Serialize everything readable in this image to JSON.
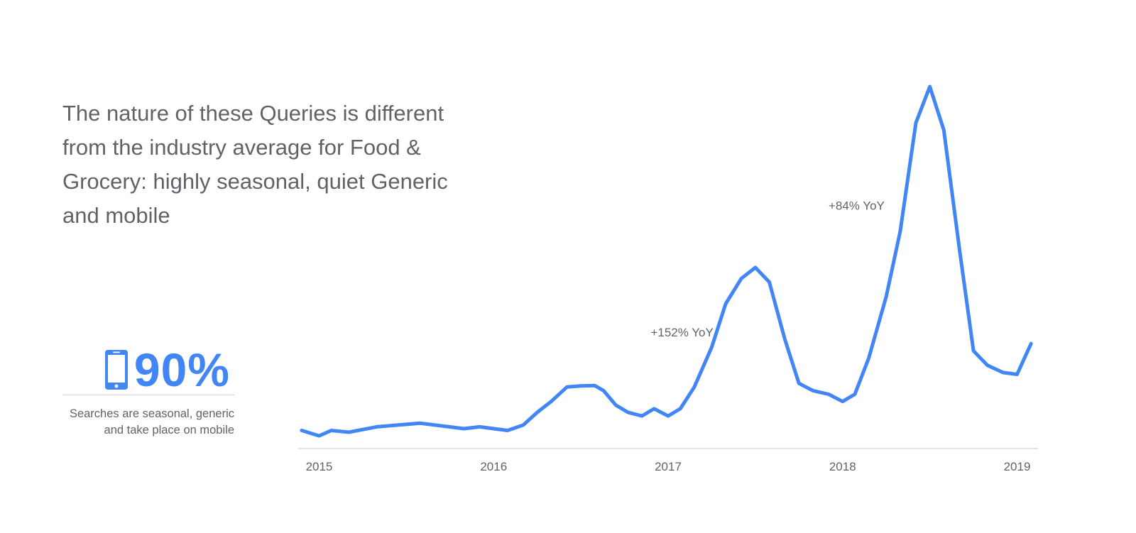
{
  "headline": "The nature of these Queries is different from the industry average for Food & Grocery: highly seasonal, quiet Generic and mobile",
  "stat": {
    "value": "90%",
    "icon": "phone-icon",
    "caption_line1": "Searches are seasonal, generic",
    "caption_line2": "and take place on mobile"
  },
  "colors": {
    "accent": "#4285f4",
    "text": "#5f6368",
    "axis": "#d7d9dc"
  },
  "chart_data": {
    "type": "line",
    "title": "",
    "xlabel": "",
    "ylabel": "",
    "xlim": [
      2014.88,
      2019.12
    ],
    "ylim": [
      0,
      100
    ],
    "grid": false,
    "x_ticks": [
      {
        "value": 2015.0,
        "label": "2015"
      },
      {
        "value": 2016.0,
        "label": "2016"
      },
      {
        "value": 2017.0,
        "label": "2017"
      },
      {
        "value": 2018.0,
        "label": "2018"
      },
      {
        "value": 2019.0,
        "label": "2019"
      }
    ],
    "series": [
      {
        "name": "",
        "x": [
          2014.9,
          2015.0,
          2015.07,
          2015.17,
          2015.33,
          2015.58,
          2015.83,
          2015.92,
          2016.0,
          2016.08,
          2016.17,
          2016.25,
          2016.33,
          2016.42,
          2016.5,
          2016.58,
          2016.63,
          2016.7,
          2016.77,
          2016.85,
          2016.92,
          2017.0,
          2017.07,
          2017.15,
          2017.25,
          2017.33,
          2017.42,
          2017.5,
          2017.58,
          2017.67,
          2017.75,
          2017.83,
          2017.92,
          2018.0,
          2018.07,
          2018.15,
          2018.25,
          2018.33,
          2018.42,
          2018.5,
          2018.58,
          2018.67,
          2018.75,
          2018.83,
          2018.92,
          2019.0,
          2019.08
        ],
        "y": [
          5,
          3.5,
          5,
          4.5,
          6,
          7,
          5.5,
          6,
          5.5,
          5,
          6.5,
          10,
          13,
          17,
          17.3,
          17.4,
          16,
          12,
          10,
          9,
          11,
          9,
          11,
          17,
          28,
          40,
          47,
          50,
          46,
          30,
          18,
          16,
          15,
          13,
          15,
          25,
          42,
          60,
          90,
          100,
          88,
          55,
          27,
          23,
          21,
          20.5,
          29
        ]
      }
    ],
    "annotations": [
      {
        "x": 2017.08,
        "y": 31,
        "text": "+152% YoY"
      },
      {
        "x": 2018.08,
        "y": 66,
        "text": "+84% YoY"
      }
    ]
  }
}
